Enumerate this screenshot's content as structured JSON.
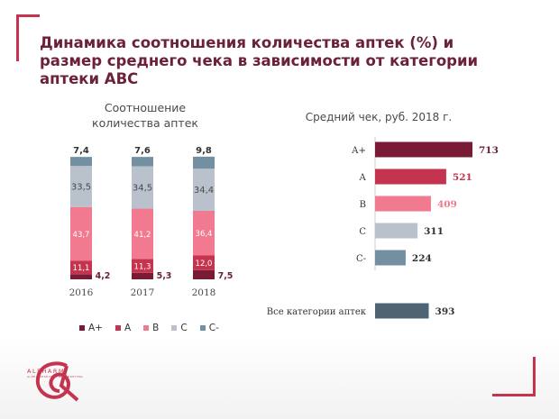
{
  "title": "Динамика соотношения количества аптек (%) и размер среднего чека в зависимости от категории аптеки АВС",
  "colors": {
    "A+": "#7a1b35",
    "A": "#c5344e",
    "B": "#f27a90",
    "C": "#b9c1cc",
    "C-": "#7390a3",
    "all": "#4e6474",
    "accent": "#c5344e",
    "title": "#6b2137"
  },
  "logo": {
    "name": "ALPHARM",
    "tagline": "ALPHA RESEARCH & MARKETING",
    "icon": "alpharm-logo-icon"
  },
  "chart_data": [
    {
      "type": "bar",
      "stacked": true,
      "title": "Соотношение количества аптек",
      "categories": [
        "2016",
        "2017",
        "2018"
      ],
      "series": [
        {
          "name": "A+",
          "values": [
            4.2,
            5.3,
            7.5
          ]
        },
        {
          "name": "A",
          "values": [
            11.1,
            11.3,
            12.0
          ]
        },
        {
          "name": "B",
          "values": [
            43.7,
            41.2,
            36.4
          ]
        },
        {
          "name": "C",
          "values": [
            33.5,
            34.5,
            34.4
          ]
        },
        {
          "name": "C-",
          "values": [
            7.4,
            7.6,
            9.8
          ]
        }
      ],
      "value_labels": [
        [
          "4,2",
          "5,3",
          "7,5"
        ],
        [
          "11,1",
          "11,3",
          "12,0"
        ],
        [
          "43,7",
          "41,2",
          "36,4"
        ],
        [
          "33,5",
          "34,5",
          "34,4"
        ],
        [
          "7,4",
          "7,6",
          "9,8"
        ]
      ],
      "ylim": [
        0,
        100
      ],
      "legend": "bottom",
      "grid": false
    },
    {
      "type": "bar",
      "orientation": "horizontal",
      "title": "Средний чек, руб. 2018 г.",
      "categories": [
        "А+",
        "А",
        "В",
        "С",
        "С-",
        "Все категории аптек"
      ],
      "values": [
        713,
        521,
        409,
        311,
        224,
        393
      ],
      "value_labels": [
        "713",
        "521",
        "409",
        "311",
        "224",
        "393"
      ],
      "xlim": [
        0,
        713
      ],
      "grid": false
    }
  ]
}
